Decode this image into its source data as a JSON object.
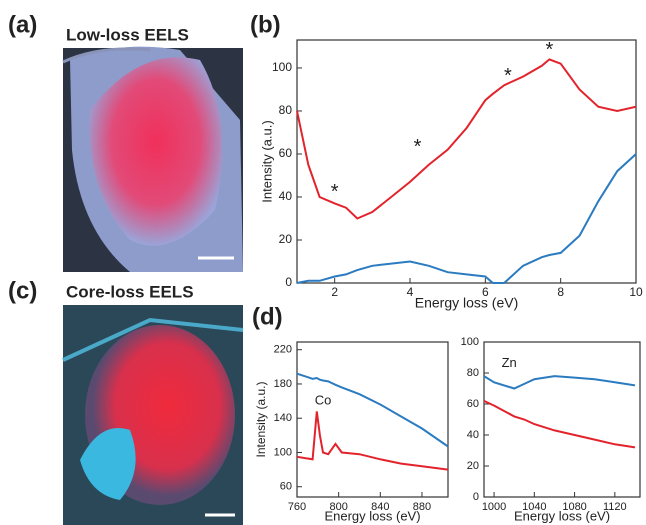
{
  "figure": {
    "panels": [
      "(a)",
      "(b)",
      "(c)",
      "(d)"
    ],
    "image_titles": [
      "Low-loss EELS",
      "Core-loss EELS"
    ]
  },
  "chart_data": [
    {
      "type": "line",
      "xlabel": "Energy loss (eV)",
      "ylabel": "Intensity (a.u.)",
      "xlim": [
        1,
        10
      ],
      "xticks": [
        2,
        4,
        6,
        8,
        10
      ],
      "ylim": [
        0,
        113
      ],
      "yticks": [
        0,
        20,
        40,
        60,
        80,
        100
      ],
      "x": [
        1,
        1.3,
        1.6,
        2,
        2.3,
        2.6,
        3,
        3.5,
        4,
        4.5,
        5,
        5.5,
        6,
        6.2,
        6.5,
        7,
        7.5,
        7.7,
        8,
        8.5,
        9,
        9.5,
        10
      ],
      "series": [
        {
          "color": "#e3232c",
          "values": [
            80,
            55,
            40,
            37,
            35,
            30,
            33,
            40,
            47,
            55,
            62,
            72,
            85,
            88,
            92,
            96,
            101,
            104,
            102,
            90,
            82,
            80,
            82
          ]
        },
        {
          "color": "#2b7bc0",
          "values": [
            0,
            1,
            1,
            3,
            4,
            6,
            8,
            9,
            10,
            8,
            5,
            4,
            3,
            0,
            0,
            8,
            12,
            13,
            14,
            22,
            38,
            52,
            60
          ]
        }
      ],
      "annotations": [
        {
          "text": "*",
          "x": 2,
          "y": 42,
          "color": "#000000"
        },
        {
          "text": "*",
          "x": 4.2,
          "y": 63,
          "color": "#e3232c"
        },
        {
          "text": "*",
          "x": 6.6,
          "y": 96,
          "color": "#e3232c"
        },
        {
          "text": "*",
          "x": 7.7,
          "y": 108,
          "color": "#e3232c"
        }
      ]
    },
    {
      "type": "line",
      "xlabel": "Energy loss (eV)",
      "ylabel": "Intensity (a.u.)",
      "xlim": [
        760,
        905
      ],
      "xticks": [
        760,
        800,
        840,
        880
      ],
      "ylim": [
        48,
        229
      ],
      "yticks": [
        60,
        100,
        140,
        180,
        220
      ],
      "x": [
        760,
        770,
        775,
        779,
        782,
        785,
        790,
        797,
        803,
        820,
        840,
        860,
        880,
        905
      ],
      "series": [
        {
          "color": "#2b7bc0",
          "values": [
            192,
            188,
            186,
            187,
            185,
            184,
            183,
            179,
            176,
            168,
            156,
            142,
            128,
            107
          ]
        },
        {
          "color": "#e3232c",
          "values": [
            95,
            93,
            92,
            148,
            120,
            100,
            98,
            110,
            100,
            98,
            92,
            87,
            84,
            80
          ]
        }
      ],
      "annotations": [
        {
          "text": "Co",
          "x": 785,
          "y": 160,
          "color": "#222222"
        }
      ]
    },
    {
      "type": "line",
      "xlabel": "Energy loss (eV)",
      "xlim": [
        990,
        1145
      ],
      "xticks": [
        1000,
        1040,
        1080,
        1120
      ],
      "ylim": [
        0,
        100
      ],
      "yticks": [
        0,
        20,
        40,
        60,
        80,
        100
      ],
      "x": [
        990,
        1000,
        1020,
        1030,
        1040,
        1060,
        1080,
        1100,
        1120,
        1140
      ],
      "series": [
        {
          "color": "#2b7bc0",
          "values": [
            78,
            74,
            70,
            73,
            76,
            78,
            77,
            76,
            74,
            72
          ]
        },
        {
          "color": "#e3232c",
          "values": [
            62,
            59,
            52,
            50,
            47,
            43,
            40,
            37,
            34,
            32
          ]
        }
      ],
      "annotations": [
        {
          "text": "Zn",
          "x": 1015,
          "y": 86,
          "color": "#222222"
        }
      ]
    }
  ]
}
